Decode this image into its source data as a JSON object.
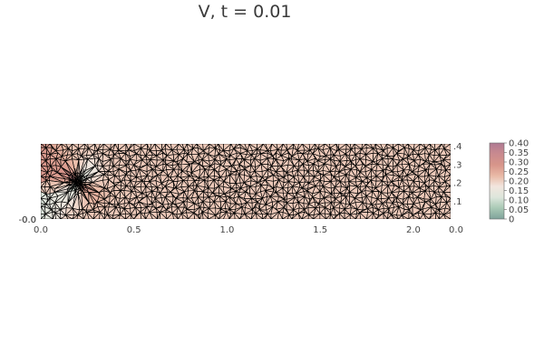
{
  "title": "V, t = 0.01",
  "chart_data": {
    "type": "heatmap",
    "title": "V, t = 0.01",
    "xlabel": "",
    "ylabel": "",
    "xlim": [
      0.0,
      2.2
    ],
    "ylim": [
      0.0,
      0.41
    ],
    "x_ticks": [
      "0.0",
      "0.5",
      "1.0",
      "1.5",
      "2.0"
    ],
    "y_ticks_right": [
      ".1",
      ".2",
      ".3",
      ".4"
    ],
    "left_overlap_tick_labels": [
      "-0.0",
      "0.0"
    ],
    "right_corner_label": "0.0",
    "colorbar": {
      "min": 0.0,
      "max": 0.4,
      "ticks": [
        "0",
        "0.05",
        "0.10",
        "0.15",
        "0.20",
        "0.25",
        "0.30",
        "0.35",
        "0.40"
      ],
      "colors": [
        "#7fa39b",
        "#a9c9b5",
        "#dde6dc",
        "#f2e6de",
        "#e9b9a5",
        "#d7958a",
        "#c98a8f",
        "#b07a93"
      ]
    },
    "mesh": "triangular",
    "mesh_edge_color": "#000000",
    "field_description_values": {
      "background_value": 0.21,
      "cylinder_center": [
        0.2,
        0.2
      ],
      "high_value_region": 0.32,
      "low_value_region": 0.08
    }
  }
}
